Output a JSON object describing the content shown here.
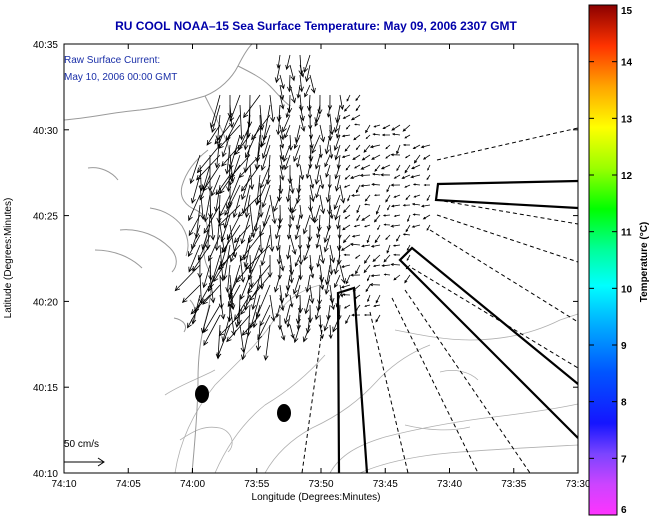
{
  "title": "RU COOL  NOAA–15  Sea Surface Temperature:  May 09, 2006 2307 GMT",
  "current": {
    "label": "Raw Surface Current:",
    "date": "May 10, 2006 00:00 GMT"
  },
  "axes": {
    "xlabel": "Longitude (Degrees:Minutes)",
    "ylabel": "Latitude (Degrees:Minutes)",
    "xticks": [
      "74:10",
      "74:05",
      "74:00",
      "73:55",
      "73:50",
      "73:45",
      "73:40",
      "73:35",
      "73:30"
    ],
    "yticks": [
      "40:35",
      "40:30",
      "40:25",
      "40:20",
      "40:15",
      "40:10"
    ]
  },
  "scale_label": "50 cm/s",
  "colorbar": {
    "label": "Temperature (°C)",
    "ticks": [
      "15",
      "14",
      "13",
      "12",
      "11",
      "10",
      "9",
      "8",
      "7",
      "6"
    ],
    "min": 6,
    "max": 15
  },
  "colors": {
    "title": "#0000aa",
    "annotation": "#1a2fa8",
    "vector": "#000000",
    "land": "#9a9a9a"
  }
}
